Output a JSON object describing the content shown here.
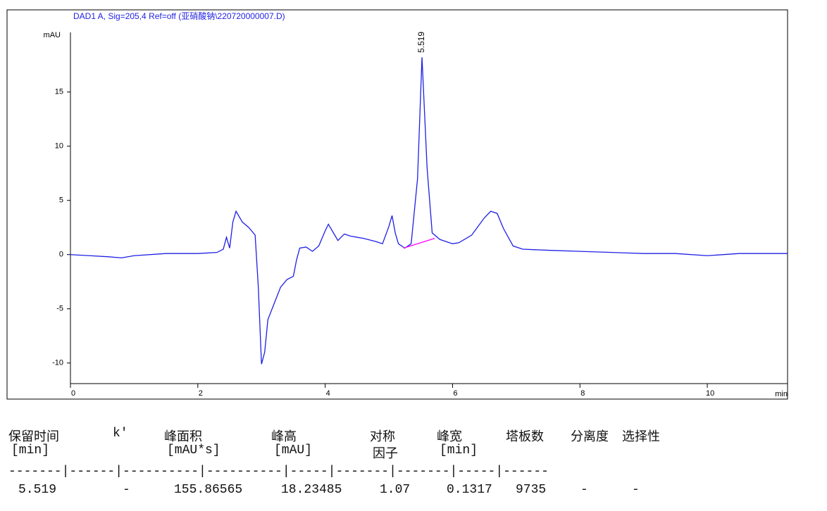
{
  "chart_data": {
    "type": "line",
    "title": "DAD1 A, Sig=205,4 Ref=off (亚硝酸钠\\220720000007.D)",
    "x_label": "min",
    "y_label": "mAU",
    "x": [
      0,
      0.3,
      0.6,
      0.8,
      1.0,
      1.5,
      2.0,
      2.3,
      2.4,
      2.45,
      2.5,
      2.55,
      2.6,
      2.7,
      2.8,
      2.9,
      2.95,
      3.0,
      3.05,
      3.1,
      3.2,
      3.3,
      3.4,
      3.5,
      3.55,
      3.6,
      3.7,
      3.8,
      3.9,
      4.0,
      4.05,
      4.15,
      4.2,
      4.3,
      4.4,
      4.6,
      4.8,
      4.9,
      5.0,
      5.05,
      5.1,
      5.15,
      5.25,
      5.35,
      5.45,
      5.52,
      5.6,
      5.68,
      5.8,
      6.0,
      6.1,
      6.3,
      6.5,
      6.6,
      6.7,
      6.8,
      6.95,
      7.1,
      7.5,
      8.0,
      8.5,
      9.0,
      9.5,
      10.0,
      10.5,
      11.0,
      11.26
    ],
    "series": [
      {
        "color": "#1f1fe6",
        "values": [
          0,
          -0.1,
          -0.2,
          -0.3,
          -0.1,
          0.1,
          0.1,
          0.2,
          0.5,
          1.6,
          0.6,
          3.0,
          4.0,
          3.0,
          2.5,
          1.8,
          -3,
          -10.1,
          -9,
          -6,
          -4.5,
          -3,
          -2.3,
          -2.0,
          -0.5,
          0.6,
          0.7,
          0.3,
          0.8,
          2.2,
          2.8,
          1.8,
          1.3,
          1.9,
          1.7,
          1.5,
          1.2,
          1.0,
          2.6,
          3.6,
          2.0,
          1.0,
          0.6,
          1.0,
          7,
          18.2,
          8,
          2,
          1.4,
          1.0,
          1.1,
          1.8,
          3.4,
          4.0,
          3.8,
          2.4,
          0.8,
          0.5,
          0.4,
          0.3,
          0.2,
          0.1,
          0.1,
          -0.1,
          0.1,
          0.1,
          0.1
        ]
      }
    ],
    "baseline": {
      "color": "#ff00ff",
      "x": [
        5.23,
        5.72
      ],
      "values": [
        0.6,
        1.5
      ]
    },
    "annotations": [
      {
        "text": "5.519"
      }
    ],
    "xlim": [
      0,
      11.26
    ],
    "ylim": [
      -11.9,
      20.5
    ],
    "xticks": [
      0,
      2,
      4,
      6,
      8,
      10
    ],
    "yticks": [
      -10,
      -5,
      0,
      5,
      10,
      15
    ]
  },
  "table": {
    "columns": [
      {
        "header": "保留时间",
        "unit": "[min]",
        "value": "5.519"
      },
      {
        "header": "k'",
        "value": "-"
      },
      {
        "header": "峰面积",
        "unit": "[mAU*s]",
        "value": "155.86565"
      },
      {
        "header": "峰高",
        "unit": "[mAU]",
        "value": "18.23485"
      },
      {
        "header": "对称",
        "unit": "因子",
        "value": "1.07"
      },
      {
        "header": "峰宽",
        "unit": "[min]",
        "value": "0.1317"
      },
      {
        "header": "塔板数",
        "value": "9735"
      },
      {
        "header": "分离度",
        "value": "-"
      },
      {
        "header": "选择性",
        "value": "-"
      }
    ],
    "separator": "-------|------|----------|----------|-----|-------|-------|-----|------"
  }
}
